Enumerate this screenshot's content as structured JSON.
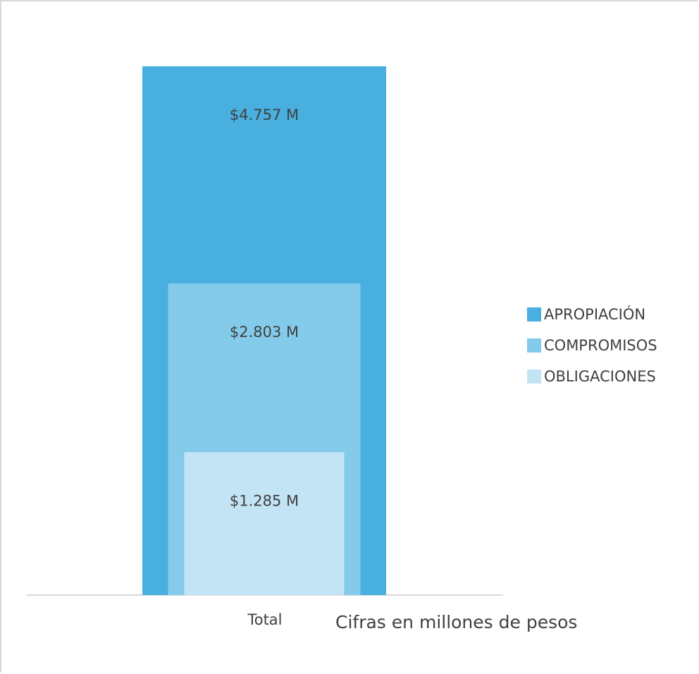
{
  "chart_data": {
    "type": "bar",
    "categories": [
      "Total"
    ],
    "series": [
      {
        "name": "APROPIACIÓN",
        "values": [
          4757
        ],
        "label": "$4.757 M",
        "color": "#48afdf"
      },
      {
        "name": "COMPROMISOS",
        "values": [
          2803
        ],
        "label": "$2.803 M",
        "color": "#84cbeb"
      },
      {
        "name": "OBLIGACIONES",
        "values": [
          1285
        ],
        "label": "$1.285 M",
        "color": "#c2e4f4"
      }
    ],
    "ylim": [
      0,
      5100
    ],
    "grid": false,
    "legend_position": "right",
    "annotation": "Cifras en millones de pesos"
  }
}
